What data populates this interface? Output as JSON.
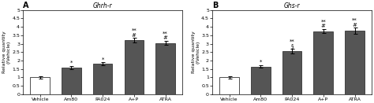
{
  "chart_data": [
    {
      "type": "bar",
      "panel_label": "A",
      "title": "Ghrh-r",
      "ylabel": "Relative quantity\n(/Vehicle)",
      "categories": [
        "Vehicle",
        "Am80",
        "PA024",
        "A+P",
        "ATRA"
      ],
      "values": [
        1.0,
        1.6,
        1.8,
        3.2,
        3.05
      ],
      "errors": [
        0.07,
        0.09,
        0.09,
        0.14,
        0.11
      ],
      "colors": [
        "white",
        "#555555",
        "#555555",
        "#555555",
        "#555555"
      ],
      "annotations": [
        {
          "category": "Am80",
          "lines": [
            "*"
          ]
        },
        {
          "category": "PA024",
          "lines": [
            "*"
          ]
        },
        {
          "category": "A+P",
          "lines": [
            "**",
            "#"
          ]
        },
        {
          "category": "ATRA",
          "lines": [
            "**",
            "#"
          ]
        }
      ],
      "ylim": [
        0,
        5
      ],
      "yticks": [
        0,
        0.5,
        1,
        1.5,
        2,
        2.5,
        3,
        3.5,
        4,
        4.5,
        5
      ]
    },
    {
      "type": "bar",
      "panel_label": "B",
      "title": "Ghs-r",
      "ylabel": "Relative quantity\n(/Vehicle)",
      "categories": [
        "Vehicle",
        "Am80",
        "PA024",
        "A+P",
        "ATRA"
      ],
      "values": [
        1.0,
        1.65,
        2.55,
        3.75,
        3.78
      ],
      "errors": [
        0.06,
        0.09,
        0.14,
        0.11,
        0.17
      ],
      "colors": [
        "white",
        "#555555",
        "#555555",
        "#555555",
        "#555555"
      ],
      "annotations": [
        {
          "category": "Am80",
          "lines": [
            "*"
          ]
        },
        {
          "category": "PA024",
          "lines": [
            "**",
            "§"
          ]
        },
        {
          "category": "A+P",
          "lines": [
            "**",
            "#"
          ]
        },
        {
          "category": "ATRA",
          "lines": [
            "**",
            "#"
          ]
        }
      ],
      "ylim": [
        0,
        5
      ],
      "yticks": [
        0,
        0.5,
        1,
        1.5,
        2,
        2.5,
        3,
        3.5,
        4,
        4.5,
        5
      ]
    }
  ]
}
